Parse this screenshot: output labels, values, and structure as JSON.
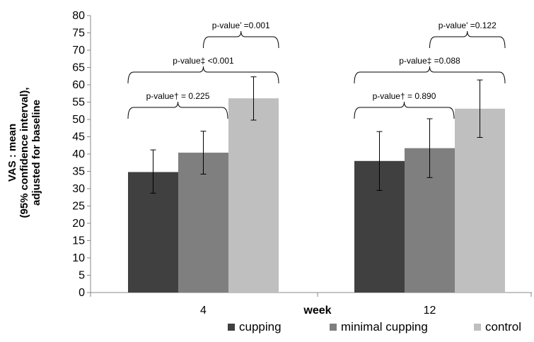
{
  "chart_data": {
    "type": "bar",
    "title": "",
    "xlabel": "week",
    "ylabel": "VAS : mean (95% confidence interval), adjusted for baseline",
    "ylabel_lines": [
      "VAS : mean",
      "(95% confidence interval),",
      "adjusted for baseline"
    ],
    "ylim": [
      0,
      80
    ],
    "ytick_step": 5,
    "grid": false,
    "legend_position": "bottom",
    "categories": [
      "4",
      "12"
    ],
    "series": [
      {
        "name": "cupping",
        "color": "#404040",
        "values": [
          34.8,
          38.0
        ],
        "ci_low": [
          28.7,
          29.5
        ],
        "ci_high": [
          41.2,
          46.5
        ]
      },
      {
        "name": "minimal cupping",
        "color": "#7f7f7f",
        "values": [
          40.4,
          41.7
        ],
        "ci_low": [
          34.2,
          33.2
        ],
        "ci_high": [
          46.6,
          50.2
        ]
      },
      {
        "name": "control",
        "color": "#bfbfbf",
        "values": [
          56.1,
          53.1
        ],
        "ci_low": [
          49.8,
          44.8
        ],
        "ci_high": [
          62.3,
          61.4
        ]
      }
    ],
    "annotations": [
      {
        "category": "4",
        "from_series": 0,
        "to_series": 1,
        "label": "p-value† = 0.225"
      },
      {
        "category": "4",
        "from_series": 0,
        "to_series": 2,
        "label": "p-value‡ <0.001"
      },
      {
        "category": "4",
        "from_series": 1,
        "to_series": 2,
        "label": "p-value’ =0.001"
      },
      {
        "category": "12",
        "from_series": 0,
        "to_series": 1,
        "label": "p-value† = 0.890"
      },
      {
        "category": "12",
        "from_series": 0,
        "to_series": 2,
        "label": "p-value‡ =0.088"
      },
      {
        "category": "12",
        "from_series": 1,
        "to_series": 2,
        "label": "p-value' =0.122"
      }
    ]
  }
}
